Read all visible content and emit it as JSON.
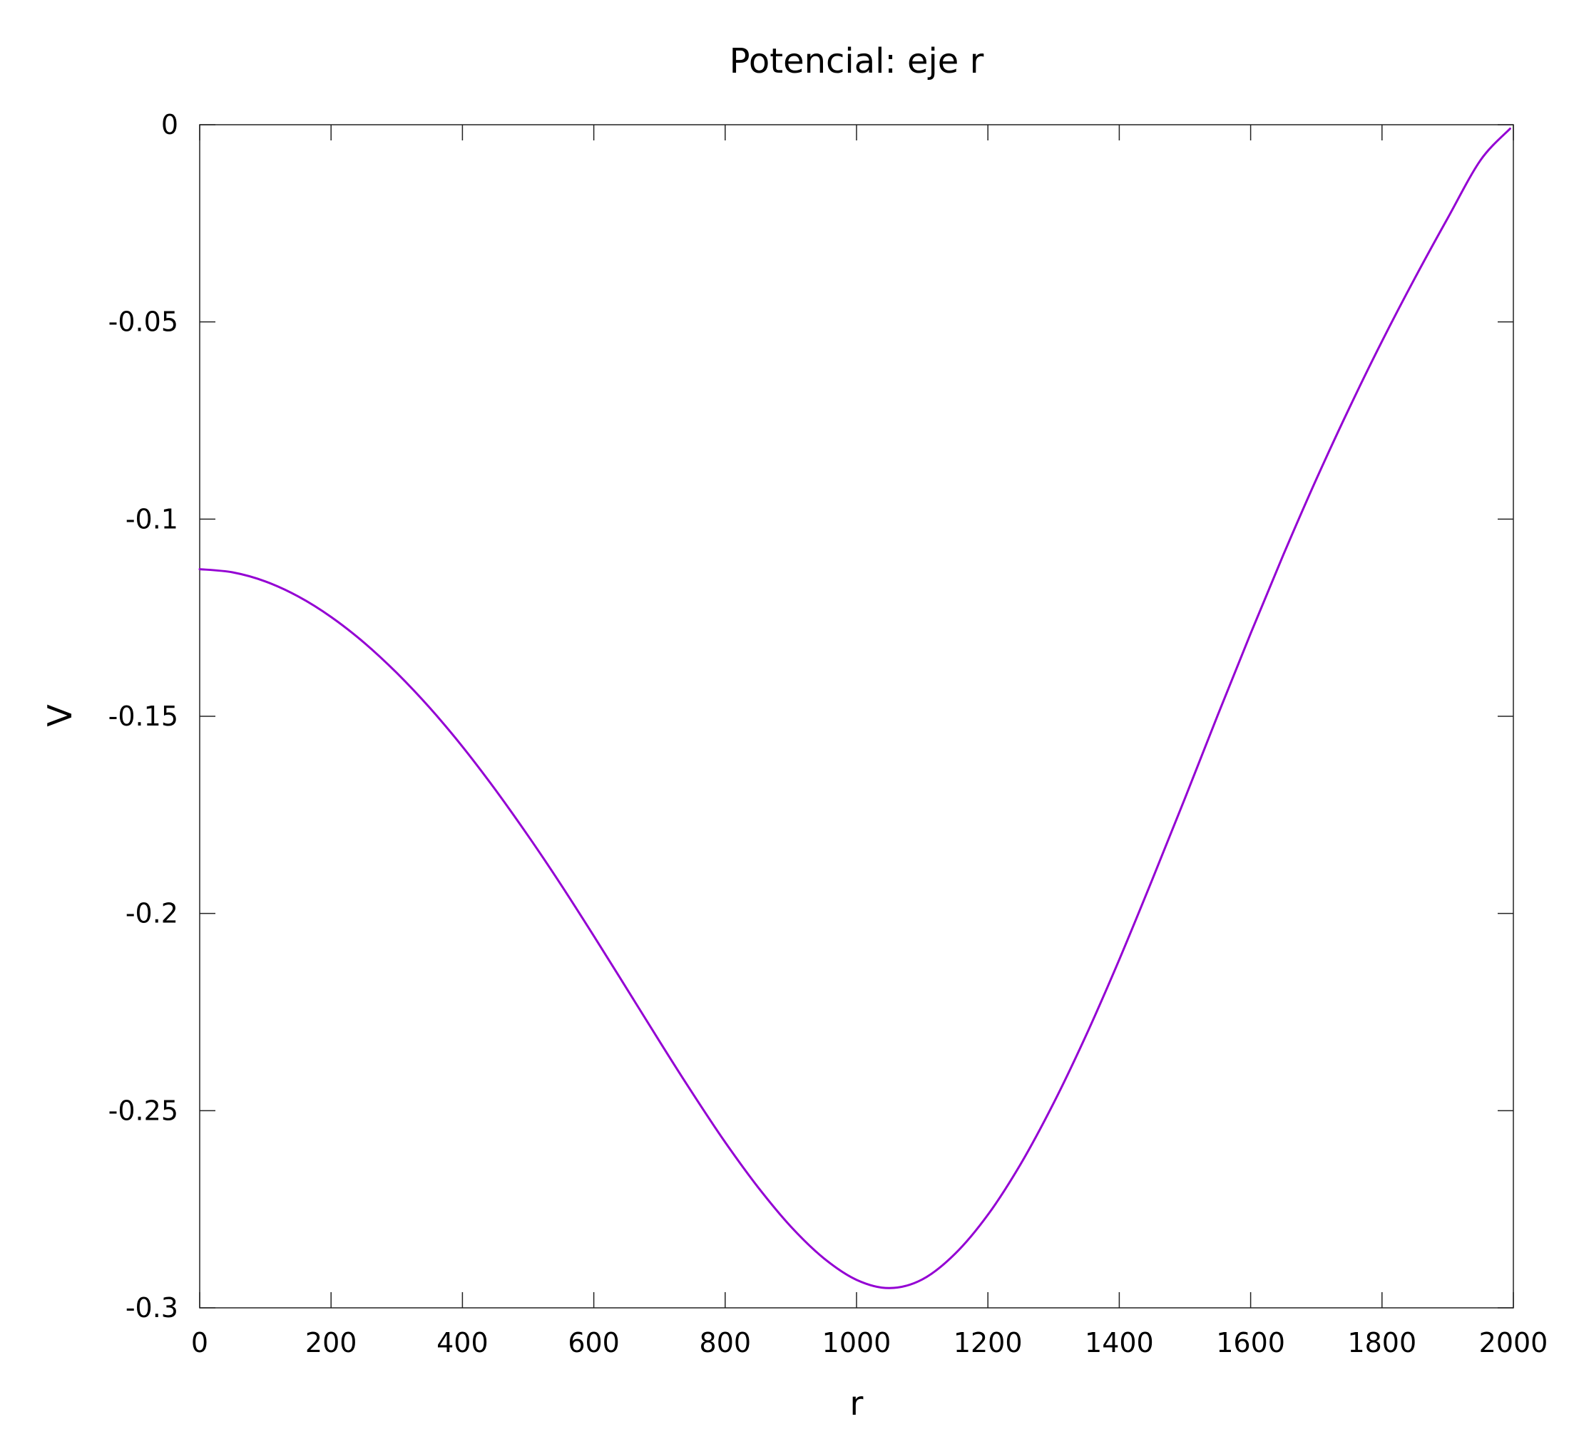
{
  "chart_data": {
    "type": "line",
    "title": "Potencial: eje r",
    "xlabel": "r",
    "ylabel": "V",
    "xlim": [
      0,
      2000
    ],
    "ylim": [
      -0.3,
      0
    ],
    "xticks": [
      "0",
      "200",
      "400",
      "600",
      "800",
      "1000",
      "1200",
      "1400",
      "1600",
      "1800",
      "2000"
    ],
    "yticks": [
      "0",
      "-0.05",
      "-0.1",
      "-0.15",
      "-0.2",
      "-0.25",
      "-0.3"
    ],
    "grid": false,
    "legend": "none",
    "series": [
      {
        "color": "#9400d3",
        "x": [
          0,
          50,
          100,
          150,
          200,
          250,
          300,
          350,
          400,
          450,
          500,
          550,
          600,
          650,
          700,
          750,
          800,
          850,
          900,
          950,
          1000,
          1050,
          1100,
          1150,
          1200,
          1250,
          1300,
          1350,
          1400,
          1450,
          1500,
          1550,
          1600,
          1650,
          1700,
          1750,
          1800,
          1850,
          1900,
          1950,
          1995
        ],
        "y": [
          -0.1127,
          -0.1135,
          -0.1158,
          -0.1196,
          -0.1248,
          -0.1313,
          -0.139,
          -0.1478,
          -0.1577,
          -0.1686,
          -0.1803,
          -0.1927,
          -0.2057,
          -0.219,
          -0.2324,
          -0.2455,
          -0.258,
          -0.2694,
          -0.2794,
          -0.2874,
          -0.2929,
          -0.295,
          -0.2928,
          -0.2863,
          -0.2764,
          -0.2635,
          -0.2481,
          -0.2307,
          -0.2117,
          -0.1915,
          -0.1708,
          -0.1497,
          -0.129,
          -0.109,
          -0.0899,
          -0.0719,
          -0.0549,
          -0.0389,
          -0.0237,
          -0.009,
          -0.001
        ]
      }
    ]
  }
}
